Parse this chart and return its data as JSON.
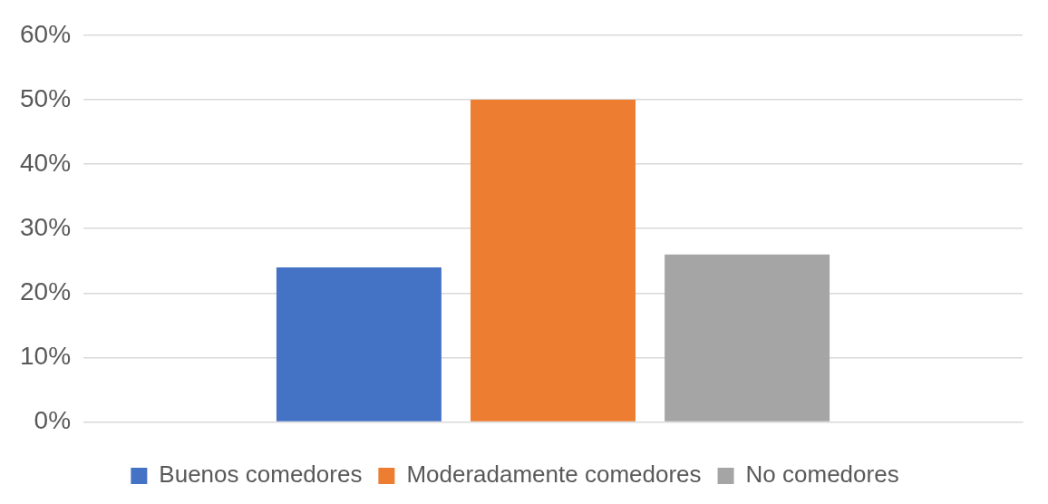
{
  "chart_data": {
    "type": "bar",
    "categories": [
      null
    ],
    "series": [
      {
        "name": "Buenos comedores",
        "color": "#4472c4",
        "values": [
          24
        ]
      },
      {
        "name": "Moderadamente comedores",
        "color": "#ed7d31",
        "values": [
          50
        ]
      },
      {
        "name": "No comedores",
        "color": "#a5a5a5",
        "values": [
          26
        ]
      }
    ],
    "ylim": [
      0,
      60
    ],
    "yticks": [
      {
        "value": 0,
        "label": "0%"
      },
      {
        "value": 10,
        "label": "10%"
      },
      {
        "value": 20,
        "label": "20%"
      },
      {
        "value": 30,
        "label": "30%"
      },
      {
        "value": 40,
        "label": "40%"
      },
      {
        "value": 50,
        "label": "50%"
      },
      {
        "value": 60,
        "label": "60%"
      }
    ],
    "grid": "y",
    "legend": "bottom"
  }
}
